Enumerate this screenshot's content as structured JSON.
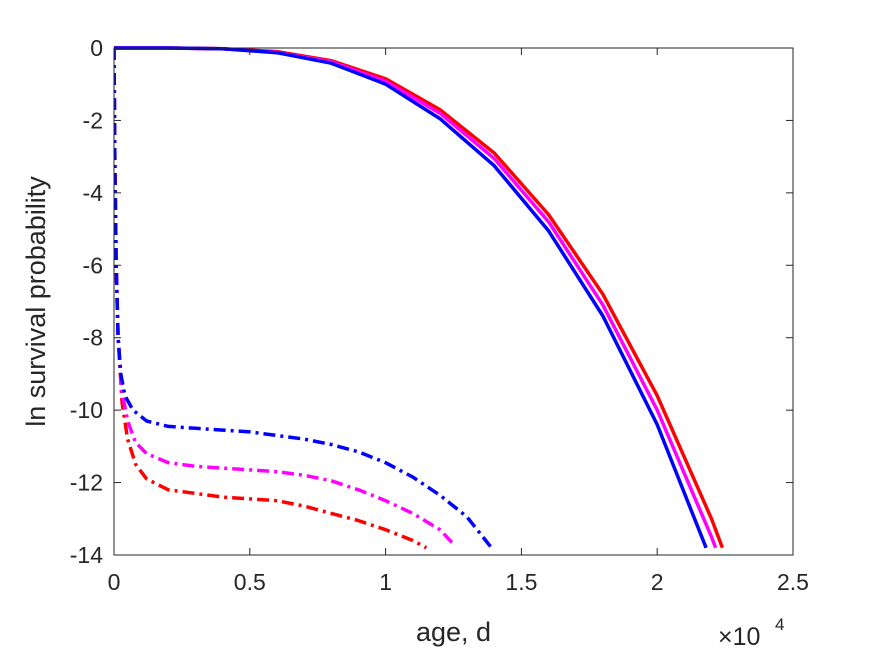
{
  "chart_data": {
    "type": "line",
    "title": "",
    "xlabel": "age, d",
    "ylabel": "ln survival probability",
    "x_exponent_label": {
      "base": "×10",
      "exponent": "4"
    },
    "xlim": [
      0,
      25000
    ],
    "ylim": [
      -14,
      0
    ],
    "x_ticks": [
      0,
      5000,
      10000,
      15000,
      20000,
      25000
    ],
    "x_tick_labels": [
      "0",
      "0.5",
      "1",
      "1.5",
      "2",
      "2.5"
    ],
    "y_ticks": [
      0,
      -2,
      -4,
      -6,
      -8,
      -10,
      -12,
      -14
    ],
    "y_tick_labels": [
      "0",
      "-2",
      "-4",
      "-6",
      "-8",
      "-10",
      "-12",
      "-14"
    ],
    "grid": false,
    "legend": "none",
    "series": [
      {
        "color": "#ff0000",
        "style": "solid",
        "points": [
          [
            0,
            0
          ],
          [
            2000,
            0
          ],
          [
            4000,
            -0.02
          ],
          [
            6000,
            -0.1
          ],
          [
            8000,
            -0.35
          ],
          [
            10000,
            -0.85
          ],
          [
            12000,
            -1.7
          ],
          [
            14000,
            -2.9
          ],
          [
            16000,
            -4.6
          ],
          [
            18000,
            -6.8
          ],
          [
            20000,
            -9.6
          ],
          [
            22000,
            -13.0
          ],
          [
            22400,
            -13.8
          ]
        ]
      },
      {
        "color": "#ff00ff",
        "style": "solid",
        "points": [
          [
            0,
            0
          ],
          [
            2000,
            0
          ],
          [
            4000,
            -0.02
          ],
          [
            6000,
            -0.12
          ],
          [
            8000,
            -0.38
          ],
          [
            10000,
            -0.92
          ],
          [
            12000,
            -1.8
          ],
          [
            14000,
            -3.05
          ],
          [
            16000,
            -4.8
          ],
          [
            18000,
            -7.1
          ],
          [
            20000,
            -10.0
          ],
          [
            22000,
            -13.5
          ],
          [
            22150,
            -13.8
          ]
        ]
      },
      {
        "color": "#0000ff",
        "style": "solid",
        "points": [
          [
            0,
            0
          ],
          [
            2000,
            0
          ],
          [
            4000,
            -0.02
          ],
          [
            6000,
            -0.13
          ],
          [
            8000,
            -0.42
          ],
          [
            10000,
            -1.0
          ],
          [
            12000,
            -1.95
          ],
          [
            14000,
            -3.25
          ],
          [
            16000,
            -5.05
          ],
          [
            18000,
            -7.4
          ],
          [
            20000,
            -10.4
          ],
          [
            21800,
            -13.8
          ]
        ]
      },
      {
        "color": "#ff0000",
        "style": "dashdot",
        "points": [
          [
            0,
            0
          ],
          [
            30,
            -3
          ],
          [
            80,
            -6
          ],
          [
            150,
            -8
          ],
          [
            300,
            -9.8
          ],
          [
            500,
            -10.8
          ],
          [
            800,
            -11.5
          ],
          [
            1200,
            -11.9
          ],
          [
            2000,
            -12.2
          ],
          [
            3000,
            -12.3
          ],
          [
            4000,
            -12.4
          ],
          [
            5000,
            -12.45
          ],
          [
            6000,
            -12.5
          ],
          [
            7000,
            -12.65
          ],
          [
            8000,
            -12.85
          ],
          [
            9000,
            -13.05
          ],
          [
            10000,
            -13.3
          ],
          [
            11000,
            -13.6
          ],
          [
            11500,
            -13.8
          ]
        ]
      },
      {
        "color": "#ff00ff",
        "style": "dashdot",
        "points": [
          [
            0,
            0
          ],
          [
            30,
            -3
          ],
          [
            80,
            -6
          ],
          [
            150,
            -8
          ],
          [
            300,
            -9.5
          ],
          [
            500,
            -10.3
          ],
          [
            800,
            -10.9
          ],
          [
            1200,
            -11.2
          ],
          [
            2000,
            -11.45
          ],
          [
            3000,
            -11.55
          ],
          [
            4000,
            -11.6
          ],
          [
            5000,
            -11.65
          ],
          [
            6000,
            -11.7
          ],
          [
            7000,
            -11.8
          ],
          [
            8000,
            -11.95
          ],
          [
            9000,
            -12.2
          ],
          [
            10000,
            -12.5
          ],
          [
            11000,
            -12.85
          ],
          [
            12000,
            -13.3
          ],
          [
            12500,
            -13.7
          ]
        ]
      },
      {
        "color": "#0000ff",
        "style": "dashdot",
        "points": [
          [
            0,
            0
          ],
          [
            30,
            -3
          ],
          [
            80,
            -6
          ],
          [
            150,
            -8
          ],
          [
            250,
            -9
          ],
          [
            400,
            -9.6
          ],
          [
            700,
            -10.0
          ],
          [
            1200,
            -10.3
          ],
          [
            2000,
            -10.45
          ],
          [
            3000,
            -10.5
          ],
          [
            4000,
            -10.55
          ],
          [
            5000,
            -10.6
          ],
          [
            6000,
            -10.7
          ],
          [
            7000,
            -10.8
          ],
          [
            8000,
            -10.95
          ],
          [
            9000,
            -11.15
          ],
          [
            10000,
            -11.45
          ],
          [
            11000,
            -11.85
          ],
          [
            12000,
            -12.35
          ],
          [
            13000,
            -12.95
          ],
          [
            13900,
            -13.8
          ]
        ]
      }
    ]
  }
}
